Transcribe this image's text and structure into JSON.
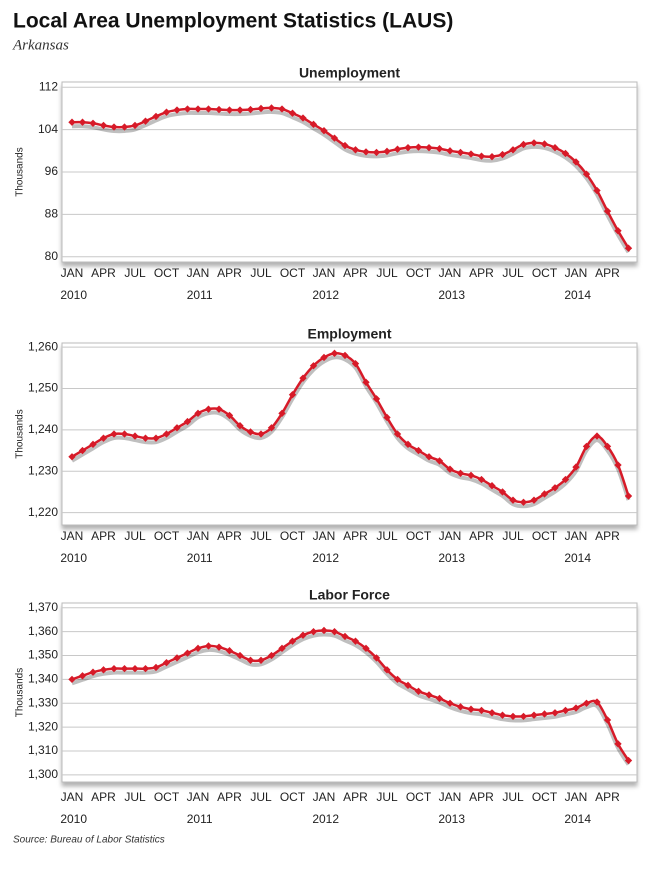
{
  "title": "Local Area Unemployment Statistics (LAUS)",
  "subtitle": "Arkansas",
  "source": "Source: Bureau of Labor Statistics",
  "chart_data": [
    {
      "type": "line",
      "title": "Unemployment",
      "y_label": "Thousands",
      "color": "#d71a28",
      "grid": true,
      "categories": [
        "JAN 2010",
        null,
        null,
        "APR",
        null,
        null,
        "JUL",
        null,
        null,
        "OCT",
        null,
        null,
        "JAN 2011",
        null,
        null,
        "APR",
        null,
        null,
        "JUL",
        null,
        null,
        "OCT",
        null,
        null,
        "JAN 2012",
        null,
        null,
        "APR",
        null,
        null,
        "JUL",
        null,
        null,
        "OCT",
        null,
        null,
        "JAN 2013",
        null,
        null,
        "APR",
        null,
        null,
        "JUL",
        null,
        null,
        "OCT",
        null,
        null,
        "JAN 2014",
        null,
        null,
        "APR",
        null,
        null
      ],
      "values": [
        105.4,
        105.4,
        105.2,
        104.8,
        104.5,
        104.5,
        104.8,
        105.6,
        106.5,
        107.3,
        107.7,
        107.9,
        107.9,
        107.9,
        107.8,
        107.7,
        107.7,
        107.8,
        108.0,
        108.1,
        107.9,
        107.1,
        106.2,
        105.0,
        103.8,
        102.4,
        101.0,
        100.2,
        99.8,
        99.7,
        99.9,
        100.3,
        100.6,
        100.7,
        100.6,
        100.4,
        100.0,
        99.7,
        99.4,
        99.0,
        98.9,
        99.3,
        100.2,
        101.2,
        101.5,
        101.3,
        100.6,
        99.5,
        97.9,
        95.6,
        92.5,
        88.6,
        84.9,
        81.6
      ],
      "ylim": [
        79,
        113
      ],
      "yticks": [
        80,
        88,
        96,
        104,
        112
      ]
    },
    {
      "type": "line",
      "title": "Employment",
      "y_label": "Thousands",
      "color": "#d71a28",
      "grid": true,
      "categories": [
        "JAN 2010",
        null,
        null,
        "APR",
        null,
        null,
        "JUL",
        null,
        null,
        "OCT",
        null,
        null,
        "JAN 2011",
        null,
        null,
        "APR",
        null,
        null,
        "JUL",
        null,
        null,
        "OCT",
        null,
        null,
        "JAN 2012",
        null,
        null,
        "APR",
        null,
        null,
        "JUL",
        null,
        null,
        "OCT",
        null,
        null,
        "JAN 2013",
        null,
        null,
        "APR",
        null,
        null,
        "JUL",
        null,
        null,
        "OCT",
        null,
        null,
        "JAN 2014",
        null,
        null,
        "APR",
        null,
        null
      ],
      "values": [
        1233.5,
        1235,
        1236.5,
        1238,
        1239,
        1239,
        1238.5,
        1238,
        1238,
        1239,
        1240.5,
        1242,
        1244,
        1245,
        1245,
        1243.5,
        1241,
        1239.5,
        1239,
        1240.5,
        1244,
        1248.5,
        1252.5,
        1255.5,
        1257.5,
        1258.5,
        1258,
        1256,
        1251.5,
        1247.5,
        1243,
        1239,
        1236.5,
        1235,
        1233.5,
        1232.5,
        1230.5,
        1229.5,
        1229,
        1228,
        1226.5,
        1225,
        1223,
        1222.5,
        1223,
        1224.5,
        1226,
        1228,
        1231,
        1236,
        1238.5,
        1236,
        1231.5,
        1224
      ],
      "ylim": [
        1217,
        1261
      ],
      "yticks": [
        {
          "value": 1220,
          "label": "1,220"
        },
        {
          "value": 1230,
          "label": "1,230"
        },
        {
          "value": 1240,
          "label": "1,240"
        },
        {
          "value": 1250,
          "label": "1,250"
        },
        {
          "value": 1260,
          "label": "1,260"
        }
      ]
    },
    {
      "type": "line",
      "title": "Labor Force",
      "y_label": "Thousands",
      "color": "#d71a28",
      "grid": true,
      "categories": [
        "JAN 2010",
        null,
        null,
        "APR",
        null,
        null,
        "JUL",
        null,
        null,
        "OCT",
        null,
        null,
        "JAN 2011",
        null,
        null,
        "APR",
        null,
        null,
        "JUL",
        null,
        null,
        "OCT",
        null,
        null,
        "JAN 2012",
        null,
        null,
        "APR",
        null,
        null,
        "JUL",
        null,
        null,
        "OCT",
        null,
        null,
        "JAN 2013",
        null,
        null,
        "APR",
        null,
        null,
        "JUL",
        null,
        null,
        "OCT",
        null,
        null,
        "JAN 2014",
        null,
        null,
        "APR",
        null,
        null
      ],
      "values": [
        1340,
        1341.5,
        1343,
        1344,
        1344.5,
        1344.5,
        1344.5,
        1344.5,
        1345,
        1347,
        1349,
        1351,
        1353,
        1354,
        1353.5,
        1352,
        1350,
        1348,
        1348,
        1350,
        1353,
        1356,
        1358.5,
        1360,
        1360.5,
        1360,
        1358,
        1356,
        1353,
        1349,
        1344,
        1340,
        1337.5,
        1335,
        1333.5,
        1332,
        1330,
        1328.5,
        1327.5,
        1327,
        1326,
        1325,
        1324.5,
        1324.5,
        1325,
        1325.5,
        1326,
        1327,
        1328,
        1330,
        1330.5,
        1323,
        1313,
        1306
      ],
      "ylim": [
        1297,
        1372
      ],
      "yticks": [
        {
          "value": 1300,
          "label": "1,300"
        },
        {
          "value": 1310,
          "label": "1,310"
        },
        {
          "value": 1320,
          "label": "1,320"
        },
        {
          "value": 1330,
          "label": "1,330"
        },
        {
          "value": 1340,
          "label": "1,340"
        },
        {
          "value": 1350,
          "label": "1,350"
        },
        {
          "value": 1360,
          "label": "1,360"
        },
        {
          "value": 1370,
          "label": "1,370"
        }
      ]
    }
  ]
}
